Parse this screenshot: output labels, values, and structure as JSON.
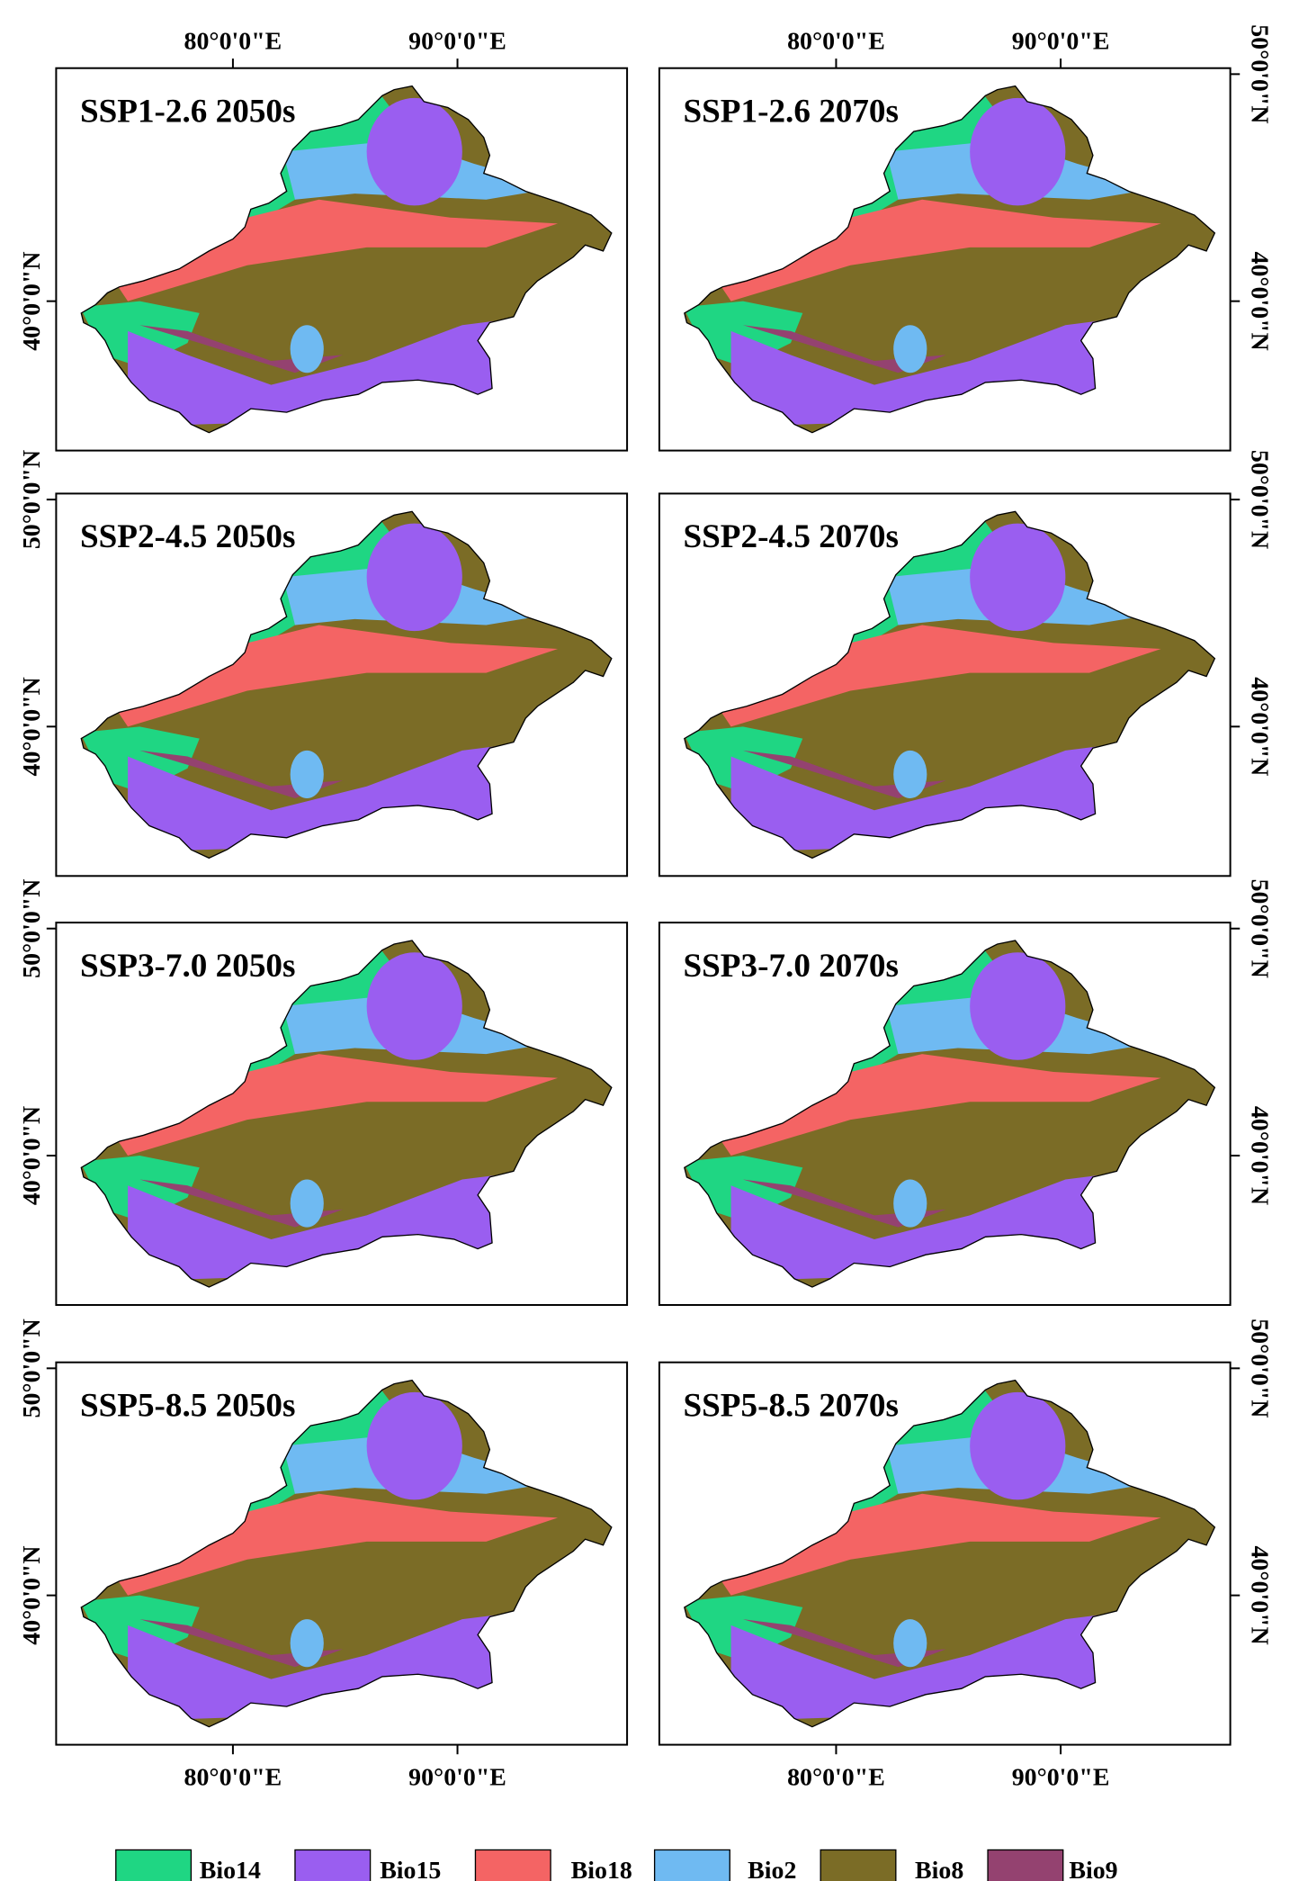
{
  "panels": [
    {
      "title": "SSP1-2.6 2050s"
    },
    {
      "title": "SSP1-2.6 2070s"
    },
    {
      "title": "SSP2-4.5 2050s"
    },
    {
      "title": "SSP2-4.5 2070s"
    },
    {
      "title": "SSP3-7.0 2050s"
    },
    {
      "title": "SSP3-7.0 2070s"
    },
    {
      "title": "SSP5-8.5 2050s"
    },
    {
      "title": "SSP5-8.5 2070s"
    }
  ],
  "lon_labels": [
    "80°0'0\"E",
    "90°0'0\"E"
  ],
  "lat_labels": [
    "50°0'0\"N",
    "40°0'0\"N"
  ],
  "legend": [
    {
      "label": "Bio14",
      "color": "#1fd683"
    },
    {
      "label": "Bio15",
      "color": "#9a5ef0"
    },
    {
      "label": "Bio18",
      "color": "#f46464"
    },
    {
      "label": "Bio2",
      "color": "#6fbaf2"
    },
    {
      "label": "Bio8",
      "color": "#7b6c26"
    },
    {
      "label": "Bio9",
      "color": "#944270"
    }
  ]
}
